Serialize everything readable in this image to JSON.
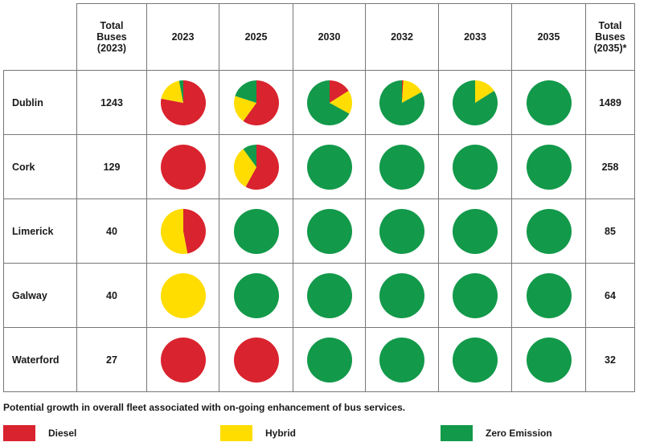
{
  "chart_data": {
    "type": "pie",
    "title": "",
    "header": {
      "total_2023": [
        "Total",
        "Buses",
        "(2023)"
      ],
      "total_2035": [
        "Total",
        "Buses",
        "(2035)*"
      ]
    },
    "years": [
      "2023",
      "2025",
      "2030",
      "2032",
      "2033",
      "2035"
    ],
    "categories": [
      "Diesel",
      "Hybrid",
      "Zero Emission"
    ],
    "colors": {
      "Diesel": "#d9232e",
      "Hybrid": "#ffdd00",
      "Zero Emission": "#12994a"
    },
    "rows": [
      {
        "city": "Dublin",
        "total_2023": "1243",
        "total_2035": "1489",
        "pies": [
          {
            "Diesel": 0.78,
            "Hybrid": 0.19,
            "Zero Emission": 0.03
          },
          {
            "Diesel": 0.6,
            "Hybrid": 0.2,
            "Zero Emission": 0.2
          },
          {
            "Diesel": 0.16,
            "Hybrid": 0.17,
            "Zero Emission": 0.67
          },
          {
            "Diesel": 0.01,
            "Hybrid": 0.16,
            "Zero Emission": 0.83
          },
          {
            "Diesel": 0.0,
            "Hybrid": 0.16,
            "Zero Emission": 0.84
          },
          {
            "Diesel": 0.0,
            "Hybrid": 0.0,
            "Zero Emission": 1.0
          }
        ]
      },
      {
        "city": "Cork",
        "total_2023": "129",
        "total_2035": "258",
        "pies": [
          {
            "Diesel": 1.0,
            "Hybrid": 0.0,
            "Zero Emission": 0.0
          },
          {
            "Diesel": 0.58,
            "Hybrid": 0.32,
            "Zero Emission": 0.1
          },
          {
            "Diesel": 0.0,
            "Hybrid": 0.0,
            "Zero Emission": 1.0
          },
          {
            "Diesel": 0.0,
            "Hybrid": 0.0,
            "Zero Emission": 1.0
          },
          {
            "Diesel": 0.0,
            "Hybrid": 0.0,
            "Zero Emission": 1.0
          },
          {
            "Diesel": 0.0,
            "Hybrid": 0.0,
            "Zero Emission": 1.0
          }
        ]
      },
      {
        "city": "Limerick",
        "total_2023": "40",
        "total_2035": "85",
        "pies": [
          {
            "Diesel": 0.47,
            "Hybrid": 0.53,
            "Zero Emission": 0.0
          },
          {
            "Diesel": 0.0,
            "Hybrid": 0.0,
            "Zero Emission": 1.0
          },
          {
            "Diesel": 0.0,
            "Hybrid": 0.0,
            "Zero Emission": 1.0
          },
          {
            "Diesel": 0.0,
            "Hybrid": 0.0,
            "Zero Emission": 1.0
          },
          {
            "Diesel": 0.0,
            "Hybrid": 0.0,
            "Zero Emission": 1.0
          },
          {
            "Diesel": 0.0,
            "Hybrid": 0.0,
            "Zero Emission": 1.0
          }
        ]
      },
      {
        "city": "Galway",
        "total_2023": "40",
        "total_2035": "64",
        "pies": [
          {
            "Diesel": 0.0,
            "Hybrid": 1.0,
            "Zero Emission": 0.0
          },
          {
            "Diesel": 0.0,
            "Hybrid": 0.0,
            "Zero Emission": 1.0
          },
          {
            "Diesel": 0.0,
            "Hybrid": 0.0,
            "Zero Emission": 1.0
          },
          {
            "Diesel": 0.0,
            "Hybrid": 0.0,
            "Zero Emission": 1.0
          },
          {
            "Diesel": 0.0,
            "Hybrid": 0.0,
            "Zero Emission": 1.0
          },
          {
            "Diesel": 0.0,
            "Hybrid": 0.0,
            "Zero Emission": 1.0
          }
        ]
      },
      {
        "city": "Waterford",
        "total_2023": "27",
        "total_2035": "32",
        "pies": [
          {
            "Diesel": 1.0,
            "Hybrid": 0.0,
            "Zero Emission": 0.0
          },
          {
            "Diesel": 1.0,
            "Hybrid": 0.0,
            "Zero Emission": 0.0
          },
          {
            "Diesel": 0.0,
            "Hybrid": 0.0,
            "Zero Emission": 1.0
          },
          {
            "Diesel": 0.0,
            "Hybrid": 0.0,
            "Zero Emission": 1.0
          },
          {
            "Diesel": 0.0,
            "Hybrid": 0.0,
            "Zero Emission": 1.0
          },
          {
            "Diesel": 0.0,
            "Hybrid": 0.0,
            "Zero Emission": 1.0
          }
        ]
      }
    ],
    "footnote": "Potential growth in overall fleet associated with on-going enhancement of bus services.",
    "legend": [
      {
        "label": "Diesel",
        "color": "#d9232e"
      },
      {
        "label": "Hybrid",
        "color": "#ffdd00"
      },
      {
        "label": "Zero Emission",
        "color": "#12994a"
      }
    ]
  }
}
